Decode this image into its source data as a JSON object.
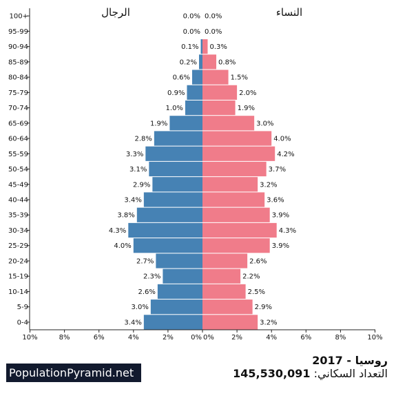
{
  "chart_data": {
    "type": "bar",
    "orientation": "horizontal",
    "subtype": "population-pyramid",
    "left_label": "الرجال",
    "right_label": "النساء",
    "categories": [
      "100+",
      "95-99",
      "90-94",
      "85-89",
      "80-84",
      "75-79",
      "70-74",
      "65-69",
      "60-64",
      "55-59",
      "50-54",
      "45-49",
      "40-44",
      "35-39",
      "30-34",
      "25-29",
      "20-24",
      "15-19",
      "10-14",
      "5-9",
      "0-4"
    ],
    "series": [
      {
        "name": "الرجال",
        "values": [
          0.0,
          0.0,
          0.1,
          0.2,
          0.6,
          0.9,
          1.0,
          1.9,
          2.8,
          3.3,
          3.1,
          2.9,
          3.4,
          3.8,
          4.3,
          4.0,
          2.7,
          2.3,
          2.6,
          3.0,
          3.4
        ],
        "color": "#4682b4"
      },
      {
        "name": "النساء",
        "values": [
          0.0,
          0.0,
          0.3,
          0.8,
          1.5,
          2.0,
          1.9,
          3.0,
          4.0,
          4.2,
          3.7,
          3.2,
          3.6,
          3.9,
          4.3,
          3.9,
          2.6,
          2.2,
          2.5,
          2.9,
          3.2
        ],
        "color": "#f07c8a"
      }
    ],
    "x_ticks_left": [
      "10%",
      "8%",
      "6%",
      "4%",
      "2%",
      "0%"
    ],
    "x_ticks_right": [
      "0%",
      "2%",
      "4%",
      "6%",
      "8%",
      "10%"
    ],
    "xlim": [
      0,
      10
    ],
    "value_suffix": "%"
  },
  "footer": {
    "brand": "PopulationPyramid.net",
    "title": "روسيا - 2017",
    "population_label": "التعداد السكاني:",
    "population_value": "145,530,091"
  }
}
